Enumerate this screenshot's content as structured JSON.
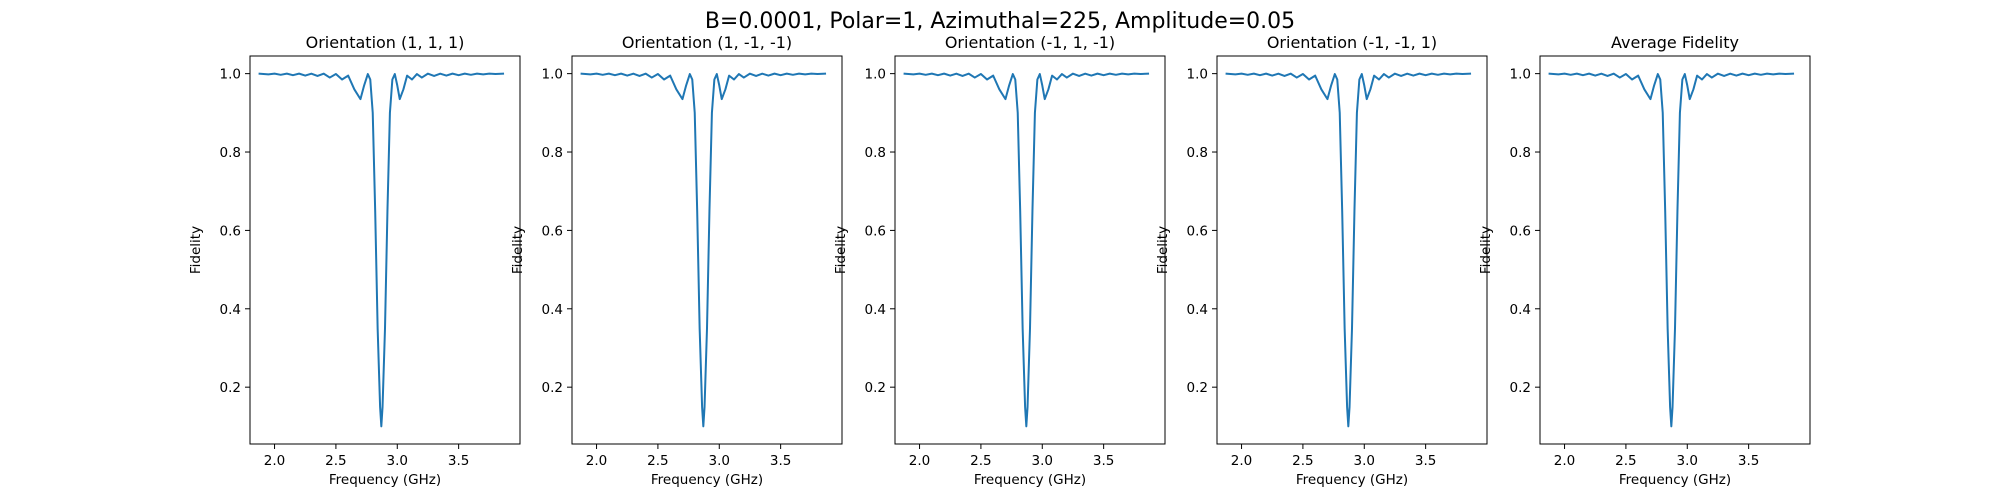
{
  "suptitle": "B=0.0001, Polar=1, Azimuthal=225, Amplitude=0.05",
  "chart_data": [
    {
      "type": "line",
      "title": "Orientation (1, 1, 1)",
      "xlabel": "Frequency (GHz)",
      "ylabel": "Fidelity",
      "xlim": [
        1.8,
        4.0
      ],
      "ylim": [
        0.055,
        1.045
      ],
      "xticks": [
        "2.0",
        "2.5",
        "3.0",
        "3.5"
      ],
      "yticks": [
        "0.2",
        "0.4",
        "0.6",
        "0.8",
        "1.0"
      ],
      "grid": false,
      "color": "#1f77b4",
      "x": [
        1.87,
        1.95,
        2.0,
        2.05,
        2.1,
        2.15,
        2.2,
        2.25,
        2.3,
        2.35,
        2.4,
        2.45,
        2.5,
        2.55,
        2.6,
        2.65,
        2.7,
        2.73,
        2.76,
        2.78,
        2.8,
        2.82,
        2.84,
        2.86,
        2.87,
        2.88,
        2.9,
        2.92,
        2.94,
        2.96,
        2.98,
        3.0,
        3.02,
        3.05,
        3.08,
        3.12,
        3.16,
        3.2,
        3.25,
        3.3,
        3.35,
        3.4,
        3.45,
        3.5,
        3.55,
        3.6,
        3.65,
        3.7,
        3.75,
        3.8,
        3.87
      ],
      "y": [
        1.0,
        0.998,
        1.0,
        0.997,
        1.0,
        0.996,
        1.0,
        0.995,
        1.0,
        0.994,
        1.0,
        0.99,
        0.999,
        0.985,
        0.995,
        0.96,
        0.935,
        0.97,
        0.999,
        0.985,
        0.9,
        0.65,
        0.35,
        0.15,
        0.1,
        0.15,
        0.35,
        0.65,
        0.9,
        0.985,
        0.999,
        0.97,
        0.935,
        0.96,
        0.995,
        0.985,
        0.999,
        0.99,
        1.0,
        0.994,
        1.0,
        0.995,
        1.0,
        0.996,
        1.0,
        0.997,
        1.0,
        0.998,
        1.0,
        0.999,
        1.0
      ]
    },
    {
      "type": "line",
      "title": "Orientation (1, -1, -1)",
      "xlabel": "Frequency (GHz)",
      "ylabel": "Fidelity",
      "xlim": [
        1.8,
        4.0
      ],
      "ylim": [
        0.055,
        1.045
      ],
      "xticks": [
        "2.0",
        "2.5",
        "3.0",
        "3.5"
      ],
      "yticks": [
        "0.2",
        "0.4",
        "0.6",
        "0.8",
        "1.0"
      ],
      "grid": false,
      "color": "#1f77b4",
      "x": [
        1.87,
        1.95,
        2.0,
        2.05,
        2.1,
        2.15,
        2.2,
        2.25,
        2.3,
        2.35,
        2.4,
        2.45,
        2.5,
        2.55,
        2.6,
        2.65,
        2.7,
        2.73,
        2.76,
        2.78,
        2.8,
        2.82,
        2.84,
        2.86,
        2.87,
        2.88,
        2.9,
        2.92,
        2.94,
        2.96,
        2.98,
        3.0,
        3.02,
        3.05,
        3.08,
        3.12,
        3.16,
        3.2,
        3.25,
        3.3,
        3.35,
        3.4,
        3.45,
        3.5,
        3.55,
        3.6,
        3.65,
        3.7,
        3.75,
        3.8,
        3.87
      ],
      "y": [
        1.0,
        0.998,
        1.0,
        0.997,
        1.0,
        0.996,
        1.0,
        0.995,
        1.0,
        0.994,
        1.0,
        0.99,
        0.999,
        0.985,
        0.995,
        0.96,
        0.935,
        0.97,
        0.999,
        0.985,
        0.9,
        0.65,
        0.35,
        0.15,
        0.1,
        0.15,
        0.35,
        0.65,
        0.9,
        0.985,
        0.999,
        0.97,
        0.935,
        0.96,
        0.995,
        0.985,
        0.999,
        0.99,
        1.0,
        0.994,
        1.0,
        0.995,
        1.0,
        0.996,
        1.0,
        0.997,
        1.0,
        0.998,
        1.0,
        0.999,
        1.0
      ]
    },
    {
      "type": "line",
      "title": "Orientation (-1, 1, -1)",
      "xlabel": "Frequency (GHz)",
      "ylabel": "Fidelity",
      "xlim": [
        1.8,
        4.0
      ],
      "ylim": [
        0.055,
        1.045
      ],
      "xticks": [
        "2.0",
        "2.5",
        "3.0",
        "3.5"
      ],
      "yticks": [
        "0.2",
        "0.4",
        "0.6",
        "0.8",
        "1.0"
      ],
      "grid": false,
      "color": "#1f77b4",
      "x": [
        1.87,
        1.95,
        2.0,
        2.05,
        2.1,
        2.15,
        2.2,
        2.25,
        2.3,
        2.35,
        2.4,
        2.45,
        2.5,
        2.55,
        2.6,
        2.65,
        2.7,
        2.73,
        2.76,
        2.78,
        2.8,
        2.82,
        2.84,
        2.86,
        2.87,
        2.88,
        2.9,
        2.92,
        2.94,
        2.96,
        2.98,
        3.0,
        3.02,
        3.05,
        3.08,
        3.12,
        3.16,
        3.2,
        3.25,
        3.3,
        3.35,
        3.4,
        3.45,
        3.5,
        3.55,
        3.6,
        3.65,
        3.7,
        3.75,
        3.8,
        3.87
      ],
      "y": [
        1.0,
        0.998,
        1.0,
        0.997,
        1.0,
        0.996,
        1.0,
        0.995,
        1.0,
        0.994,
        1.0,
        0.99,
        0.999,
        0.985,
        0.995,
        0.96,
        0.935,
        0.97,
        0.999,
        0.985,
        0.9,
        0.65,
        0.35,
        0.15,
        0.1,
        0.15,
        0.35,
        0.65,
        0.9,
        0.985,
        0.999,
        0.97,
        0.935,
        0.96,
        0.995,
        0.985,
        0.999,
        0.99,
        1.0,
        0.994,
        1.0,
        0.995,
        1.0,
        0.996,
        1.0,
        0.997,
        1.0,
        0.998,
        1.0,
        0.999,
        1.0
      ]
    },
    {
      "type": "line",
      "title": "Orientation (-1, -1, 1)",
      "xlabel": "Frequency (GHz)",
      "ylabel": "Fidelity",
      "xlim": [
        1.8,
        4.0
      ],
      "ylim": [
        0.055,
        1.045
      ],
      "xticks": [
        "2.0",
        "2.5",
        "3.0",
        "3.5"
      ],
      "yticks": [
        "0.2",
        "0.4",
        "0.6",
        "0.8",
        "1.0"
      ],
      "grid": false,
      "color": "#1f77b4",
      "x": [
        1.87,
        1.95,
        2.0,
        2.05,
        2.1,
        2.15,
        2.2,
        2.25,
        2.3,
        2.35,
        2.4,
        2.45,
        2.5,
        2.55,
        2.6,
        2.65,
        2.7,
        2.73,
        2.76,
        2.78,
        2.8,
        2.82,
        2.84,
        2.86,
        2.87,
        2.88,
        2.9,
        2.92,
        2.94,
        2.96,
        2.98,
        3.0,
        3.02,
        3.05,
        3.08,
        3.12,
        3.16,
        3.2,
        3.25,
        3.3,
        3.35,
        3.4,
        3.45,
        3.5,
        3.55,
        3.6,
        3.65,
        3.7,
        3.75,
        3.8,
        3.87
      ],
      "y": [
        1.0,
        0.998,
        1.0,
        0.997,
        1.0,
        0.996,
        1.0,
        0.995,
        1.0,
        0.994,
        1.0,
        0.99,
        0.999,
        0.985,
        0.995,
        0.96,
        0.935,
        0.97,
        0.999,
        0.985,
        0.9,
        0.65,
        0.35,
        0.15,
        0.1,
        0.15,
        0.35,
        0.65,
        0.9,
        0.985,
        0.999,
        0.97,
        0.935,
        0.96,
        0.995,
        0.985,
        0.999,
        0.99,
        1.0,
        0.994,
        1.0,
        0.995,
        1.0,
        0.996,
        1.0,
        0.997,
        1.0,
        0.998,
        1.0,
        0.999,
        1.0
      ]
    },
    {
      "type": "line",
      "title": "Average Fidelity",
      "xlabel": "Frequency (GHz)",
      "ylabel": "Fidelity",
      "xlim": [
        1.8,
        4.0
      ],
      "ylim": [
        0.055,
        1.045
      ],
      "xticks": [
        "2.0",
        "2.5",
        "3.0",
        "3.5"
      ],
      "yticks": [
        "0.2",
        "0.4",
        "0.6",
        "0.8",
        "1.0"
      ],
      "grid": false,
      "color": "#1f77b4",
      "x": [
        1.87,
        1.95,
        2.0,
        2.05,
        2.1,
        2.15,
        2.2,
        2.25,
        2.3,
        2.35,
        2.4,
        2.45,
        2.5,
        2.55,
        2.6,
        2.65,
        2.7,
        2.73,
        2.76,
        2.78,
        2.8,
        2.82,
        2.84,
        2.86,
        2.87,
        2.88,
        2.9,
        2.92,
        2.94,
        2.96,
        2.98,
        3.0,
        3.02,
        3.05,
        3.08,
        3.12,
        3.16,
        3.2,
        3.25,
        3.3,
        3.35,
        3.4,
        3.45,
        3.5,
        3.55,
        3.6,
        3.65,
        3.7,
        3.75,
        3.8,
        3.87
      ],
      "y": [
        1.0,
        0.998,
        1.0,
        0.997,
        1.0,
        0.996,
        1.0,
        0.995,
        1.0,
        0.994,
        1.0,
        0.99,
        0.999,
        0.985,
        0.995,
        0.96,
        0.935,
        0.97,
        0.999,
        0.985,
        0.9,
        0.65,
        0.35,
        0.15,
        0.1,
        0.15,
        0.35,
        0.65,
        0.9,
        0.985,
        0.999,
        0.97,
        0.935,
        0.96,
        0.995,
        0.985,
        0.999,
        0.99,
        1.0,
        0.994,
        1.0,
        0.995,
        1.0,
        0.996,
        1.0,
        0.997,
        1.0,
        0.998,
        1.0,
        0.999,
        1.0
      ]
    }
  ]
}
